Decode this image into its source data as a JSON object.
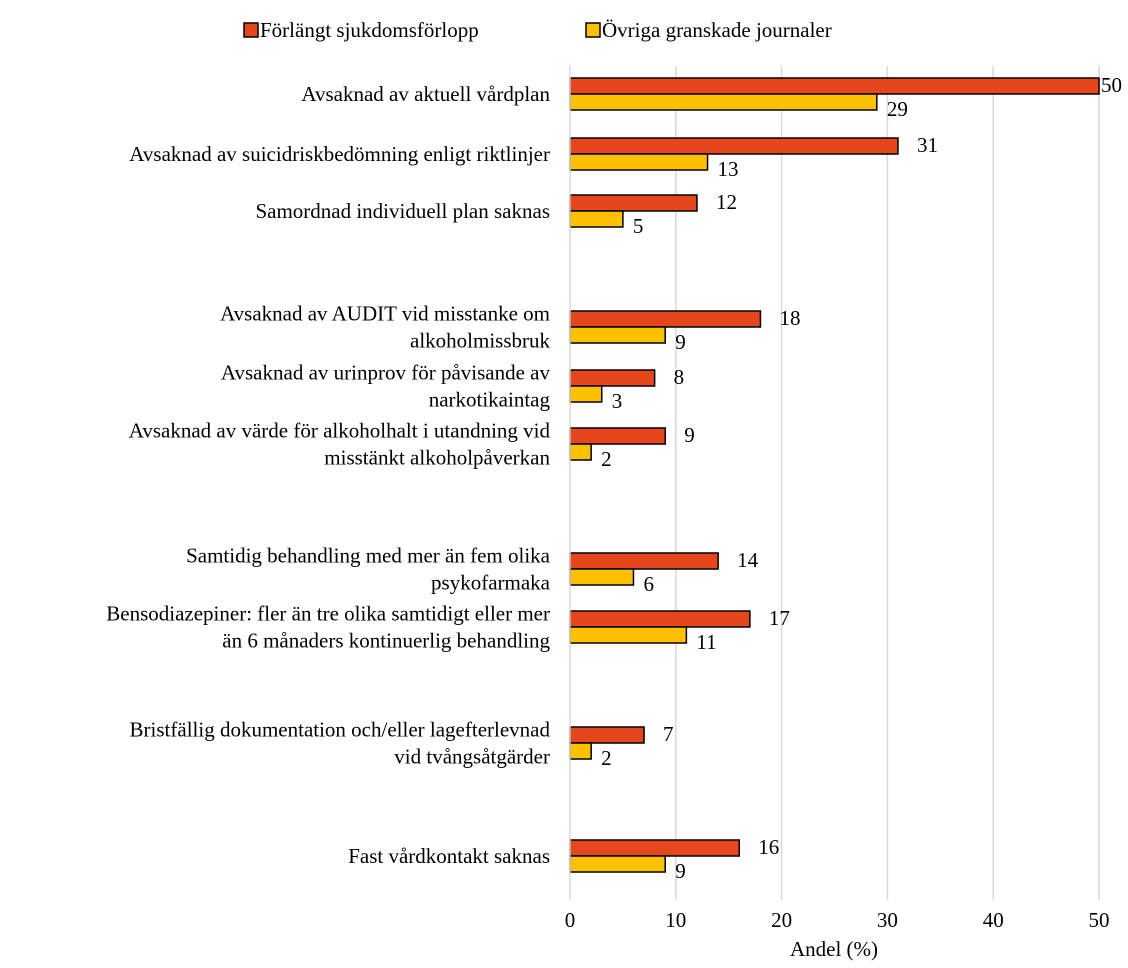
{
  "chart_data": {
    "type": "bar",
    "orientation": "horizontal",
    "xlabel": "Andel (%)",
    "xlim": [
      0,
      50
    ],
    "xticks": [
      0,
      10,
      20,
      30,
      40,
      50
    ],
    "grid": "vertical",
    "legend_position": "top",
    "colors": {
      "series_1": "#E6461C",
      "series_2": "#FFC000",
      "gridline": "#D9D9D9",
      "text": "#000000"
    },
    "series": [
      {
        "name": "Förlängt sjukdomsförlopp",
        "values": [
          50,
          31,
          12,
          18,
          8,
          9,
          14,
          17,
          7,
          16
        ]
      },
      {
        "name": "Övriga granskade journaler",
        "values": [
          29,
          13,
          5,
          9,
          3,
          2,
          6,
          11,
          2,
          9
        ]
      }
    ],
    "categories": [
      {
        "label": [
          "Avsaknad av aktuell vårdplan"
        ]
      },
      {
        "label": [
          "Avsaknad av suicidriskbedömning enligt riktlinjer"
        ]
      },
      {
        "label": [
          "Samordnad individuell plan saknas"
        ]
      },
      {
        "label": [
          "Avsaknad av AUDIT vid misstanke om",
          "alkoholmissbruk"
        ]
      },
      {
        "label": [
          "Avsaknad av urinprov för påvisande av",
          "narkotikaintag"
        ]
      },
      {
        "label": [
          "Avsaknad av värde för alkoholhalt i utandning vid",
          "misstänkt alkoholpåverkan"
        ]
      },
      {
        "label": [
          "Samtidig behandling med mer än fem olika",
          "psykofarmaka"
        ]
      },
      {
        "label": [
          "Bensodiazepiner: fler än tre olika samtidigt eller mer",
          "än 6 månaders kontinuerlig behandling"
        ]
      },
      {
        "label": [
          "Bristfällig dokumentation och/eller lagefterlevnad",
          "vid tvångsåtgärder"
        ]
      },
      {
        "label": [
          "Fast vårdkontakt saknas"
        ]
      }
    ]
  }
}
